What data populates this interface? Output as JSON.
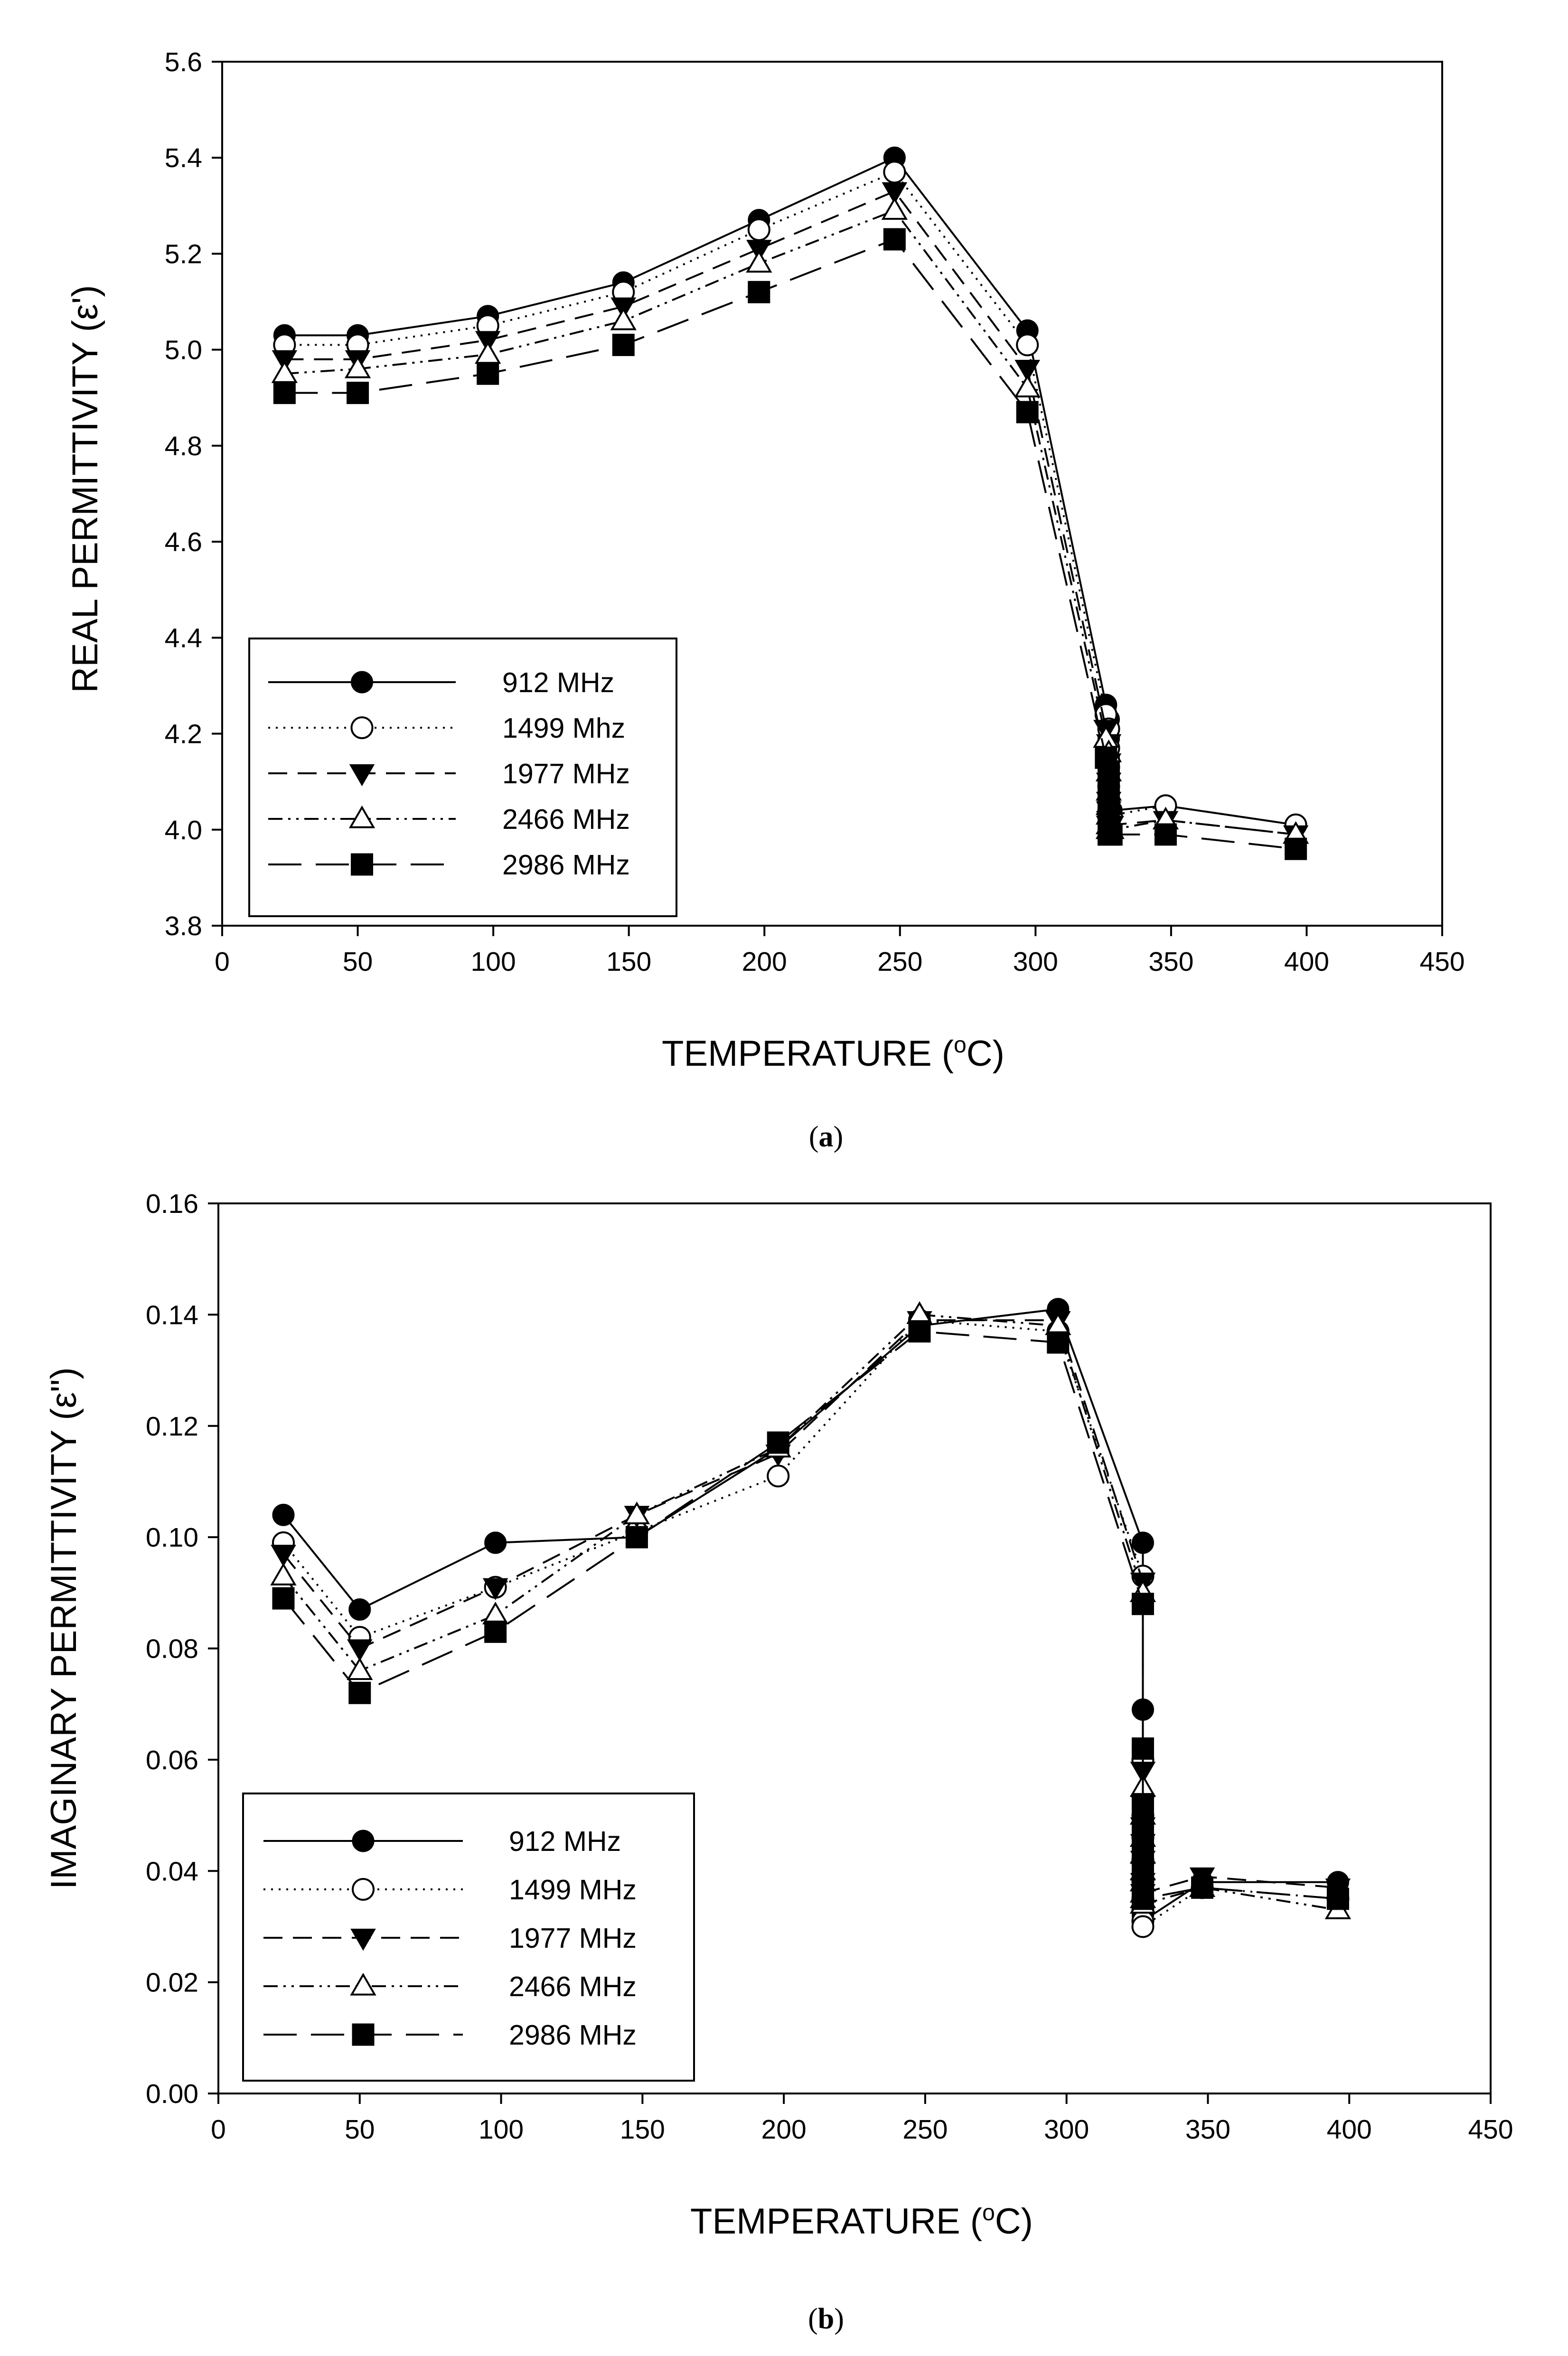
{
  "chart_data": [
    {
      "type": "line",
      "caption": {
        "open": "(",
        "letter": "a",
        "close": ")"
      },
      "xlabel": {
        "text": "TEMPERATURE (",
        "sup": "o",
        "unit": "C)"
      },
      "ylabel": "REAL PERMITTIVITY (ε')",
      "xlim": [
        0,
        450
      ],
      "ylim": [
        3.8,
        5.6
      ],
      "xticks": [
        0,
        50,
        100,
        150,
        200,
        250,
        300,
        350,
        400,
        450
      ],
      "yticks": [
        3.8,
        4.0,
        4.2,
        4.4,
        4.6,
        4.8,
        5.0,
        5.2,
        5.4,
        5.6
      ],
      "ytick_decimals": 1,
      "legend_position": "bottom-left",
      "x": [
        23,
        50,
        98,
        148,
        198,
        248,
        297,
        326,
        327,
        327,
        327,
        327,
        327,
        327,
        327,
        327,
        328,
        348,
        396
      ],
      "series": [
        {
          "name": "912 MHz",
          "marker": "filled-circle",
          "dash": "solid",
          "values": [
            5.03,
            5.03,
            5.07,
            5.14,
            5.27,
            5.4,
            5.04,
            4.26,
            4.23,
            4.19,
            4.15,
            4.11,
            4.08,
            4.06,
            4.05,
            4.04,
            4.04,
            4.05,
            4.01
          ]
        },
        {
          "name": "1499 Mhz",
          "marker": "open-circle",
          "dash": "dotted",
          "values": [
            5.01,
            5.01,
            5.05,
            5.12,
            5.25,
            5.37,
            5.01,
            4.24,
            4.21,
            4.17,
            4.13,
            4.09,
            4.06,
            4.04,
            4.03,
            4.03,
            4.03,
            4.05,
            4.01
          ]
        },
        {
          "name": "1977 MHz",
          "marker": "filled-triangle-down",
          "dash": "dashed",
          "values": [
            4.98,
            4.98,
            5.02,
            5.09,
            5.21,
            5.33,
            4.96,
            4.21,
            4.18,
            4.14,
            4.1,
            4.06,
            4.04,
            4.02,
            4.01,
            4.01,
            4.01,
            4.02,
            3.99
          ]
        },
        {
          "name": "2466 MHz",
          "marker": "open-triangle-up",
          "dash": "dash-dot-dot",
          "values": [
            4.95,
            4.96,
            4.99,
            5.06,
            5.18,
            5.29,
            4.92,
            4.19,
            4.16,
            4.12,
            4.08,
            4.05,
            4.03,
            4.01,
            4.0,
            4.0,
            4.0,
            4.02,
            3.99
          ]
        },
        {
          "name": "2986 MHz",
          "marker": "filled-square",
          "dash": "long-dash",
          "values": [
            4.91,
            4.91,
            4.95,
            5.01,
            5.12,
            5.23,
            4.87,
            4.15,
            4.12,
            4.09,
            4.06,
            4.04,
            4.02,
            4.0,
            3.99,
            3.99,
            3.99,
            3.99,
            3.96
          ]
        }
      ]
    },
    {
      "type": "line",
      "caption": {
        "open": "(",
        "letter": "b",
        "close": ")"
      },
      "xlabel": {
        "text": "TEMPERATURE (",
        "sup": "o",
        "unit": "C)"
      },
      "ylabel": "IMAGINARY PERMITTIVITY (ε\")",
      "xlim": [
        0,
        450
      ],
      "ylim": [
        0.0,
        0.16
      ],
      "xticks": [
        0,
        50,
        100,
        150,
        200,
        250,
        300,
        350,
        400,
        450
      ],
      "yticks": [
        0.0,
        0.02,
        0.04,
        0.06,
        0.08,
        0.1,
        0.12,
        0.14,
        0.16
      ],
      "ytick_decimals": 2,
      "legend_position": "bottom-left",
      "x": [
        23,
        50,
        98,
        148,
        198,
        248,
        297,
        327,
        327,
        327,
        327,
        327,
        327,
        327,
        327,
        327,
        327,
        348,
        396
      ],
      "series": [
        {
          "name": "912 MHz",
          "marker": "filled-circle",
          "dash": "solid",
          "values": [
            0.104,
            0.087,
            0.099,
            0.1,
            0.116,
            0.138,
            0.141,
            0.099,
            0.069,
            0.052,
            0.048,
            0.044,
            0.04,
            0.037,
            0.034,
            0.032,
            0.031,
            0.038,
            0.038
          ]
        },
        {
          "name": "1499 MHz",
          "marker": "open-circle",
          "dash": "dotted",
          "values": [
            0.099,
            0.082,
            0.091,
            0.101,
            0.111,
            0.139,
            0.137,
            0.093,
            0.06,
            0.05,
            0.046,
            0.042,
            0.038,
            0.035,
            0.033,
            0.031,
            0.03,
            0.037,
            0.035
          ]
        },
        {
          "name": "1977 MHz",
          "marker": "filled-triangle-down",
          "dash": "dashed",
          "values": [
            0.097,
            0.08,
            0.091,
            0.104,
            0.115,
            0.139,
            0.139,
            0.092,
            0.058,
            0.052,
            0.048,
            0.045,
            0.042,
            0.04,
            0.038,
            0.037,
            0.036,
            0.039,
            0.037
          ]
        },
        {
          "name": "2466 MHz",
          "marker": "open-triangle-up",
          "dash": "dash-dot-dot",
          "values": [
            0.093,
            0.076,
            0.086,
            0.104,
            0.116,
            0.14,
            0.138,
            0.09,
            0.055,
            0.05,
            0.046,
            0.043,
            0.04,
            0.038,
            0.036,
            0.035,
            0.034,
            0.037,
            0.033
          ]
        },
        {
          "name": "2986 MHz",
          "marker": "filled-square",
          "dash": "long-dash",
          "values": [
            0.089,
            0.072,
            0.083,
            0.1,
            0.117,
            0.137,
            0.135,
            0.088,
            0.062,
            0.052,
            0.048,
            0.044,
            0.041,
            0.039,
            0.037,
            0.036,
            0.035,
            0.037,
            0.035
          ]
        }
      ]
    }
  ]
}
